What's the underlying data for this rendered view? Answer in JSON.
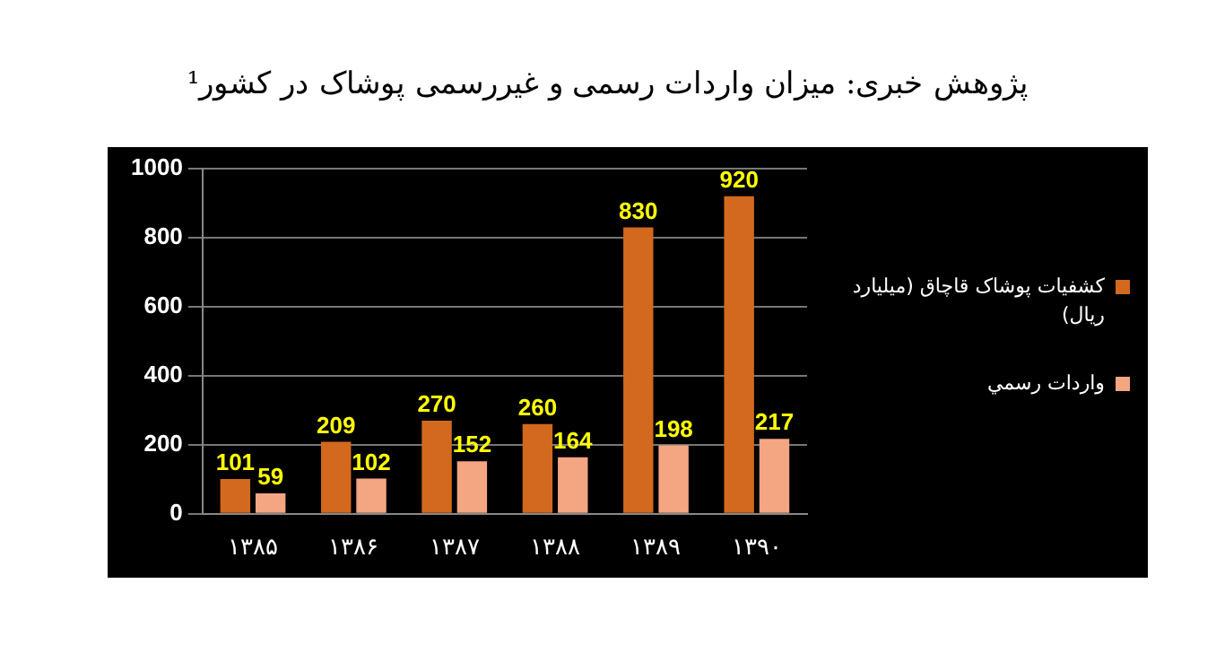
{
  "chart_data": {
    "type": "bar",
    "title": "پژوهش خبری: میزان واردات رسمی و غیررسمی پوشاک در کشور¹",
    "categories": [
      "۱۳۸۵",
      "۱۳۸۶",
      "۱۳۸۷",
      "۱۳۸۸",
      "۱۳۸۹",
      "۱۳۹۰"
    ],
    "series": [
      {
        "name": "کشفیات پوشاک قاچاق (میلیارد ریال)",
        "color": "#d2691e",
        "values": [
          101,
          209,
          270,
          260,
          830,
          920
        ]
      },
      {
        "name": "واردات رسمي",
        "color": "#f4a582",
        "values": [
          59,
          102,
          152,
          164,
          198,
          217
        ]
      }
    ],
    "ylim": [
      0,
      1000
    ],
    "yticks": [
      0,
      200,
      400,
      600,
      800,
      1000
    ],
    "grid": "y",
    "legend": "right",
    "data_labels": true
  }
}
